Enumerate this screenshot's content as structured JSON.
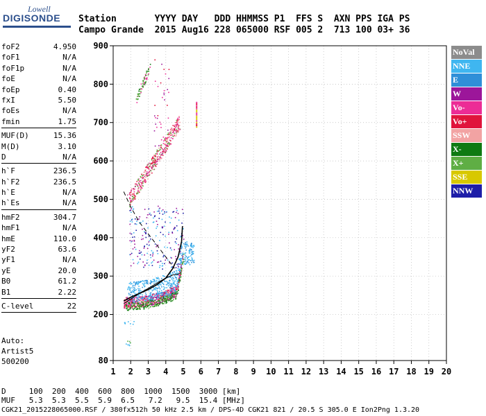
{
  "logo": {
    "top": "Lowell",
    "main": "DIGISONDE"
  },
  "header": {
    "line1": "Station       YYYY DAY   DDD HHMMSS P1  FFS S  AXN PPS IGA PS",
    "line2": "Campo Grande  2015 Aug16 228 065000 RSF 005 2  713 100 03+ 36"
  },
  "params": [
    {
      "k": "foF2",
      "v": "4.950"
    },
    {
      "k": "foF1",
      "v": "N/A"
    },
    {
      "k": "foF1p",
      "v": "N/A"
    },
    {
      "k": "foE",
      "v": "N/A"
    },
    {
      "k": "foEp",
      "v": "0.40"
    },
    {
      "k": "fxI",
      "v": "5.50"
    },
    {
      "k": "foEs",
      "v": "N/A"
    },
    {
      "k": "fmin",
      "v": "1.75"
    },
    {
      "sep": true
    },
    {
      "k": "MUF(D)",
      "v": "15.36"
    },
    {
      "k": "M(D)",
      "v": "3.10"
    },
    {
      "k": "D",
      "v": "N/A"
    },
    {
      "sep": true
    },
    {
      "k": "h`F",
      "v": "236.5"
    },
    {
      "k": "h`F2",
      "v": "236.5"
    },
    {
      "k": "h`E",
      "v": "N/A"
    },
    {
      "k": "h`Es",
      "v": "N/A"
    },
    {
      "sep": true
    },
    {
      "k": "hmF2",
      "v": "304.7"
    },
    {
      "k": "hmF1",
      "v": "N/A"
    },
    {
      "k": "hmE",
      "v": "110.0"
    },
    {
      "k": "yF2",
      "v": "63.6"
    },
    {
      "k": "yF1",
      "v": "N/A"
    },
    {
      "k": "yE",
      "v": "20.0"
    },
    {
      "k": "B0",
      "v": "61.2"
    },
    {
      "k": "B1",
      "v": "2.22"
    },
    {
      "sep": true
    },
    {
      "k": "C-level",
      "v": "22"
    },
    {
      "sep": true
    }
  ],
  "auto": {
    "line1": "Auto:",
    "line2": "Artist5",
    "line3": "500200"
  },
  "legend": [
    {
      "label": "NoVal",
      "color": "#8c8c8c"
    },
    {
      "label": "NNE",
      "color": "#3fb6f0"
    },
    {
      "label": "E",
      "color": "#2f8fd8"
    },
    {
      "label": "W",
      "color": "#9c169a"
    },
    {
      "label": "Vo-",
      "color": "#ec2c96"
    },
    {
      "label": "Vo+",
      "color": "#e0143c"
    },
    {
      "label": "SSW",
      "color": "#f2a3a3"
    },
    {
      "label": "X-",
      "color": "#0f7a12"
    },
    {
      "label": "X+",
      "color": "#5fae44"
    },
    {
      "label": "SSE",
      "color": "#d8c800"
    },
    {
      "label": "NNW",
      "color": "#1e1ea8"
    }
  ],
  "chart_data": {
    "type": "scatter",
    "xlabel": "",
    "ylabel": "",
    "xlim": [
      1,
      20
    ],
    "ylim": [
      80,
      900
    ],
    "xticks": [
      1,
      2,
      3,
      4,
      5,
      6,
      7,
      8,
      9,
      10,
      11,
      12,
      13,
      14,
      15,
      16,
      17,
      18,
      19,
      20
    ],
    "yticks": [
      80,
      200,
      300,
      400,
      500,
      600,
      700,
      800,
      900
    ],
    "o_trace": [
      [
        1.6,
        235
      ],
      [
        2.0,
        245
      ],
      [
        2.5,
        255
      ],
      [
        3.0,
        265
      ],
      [
        3.5,
        278
      ],
      [
        4.0,
        295
      ],
      [
        4.4,
        320
      ],
      [
        4.7,
        350
      ],
      [
        4.9,
        390
      ],
      [
        4.95,
        430
      ]
    ],
    "profile_solid": [
      [
        1.6,
        228
      ],
      [
        2.0,
        240
      ],
      [
        2.5,
        255
      ],
      [
        3.0,
        268
      ],
      [
        3.5,
        282
      ],
      [
        4.0,
        295
      ],
      [
        4.4,
        303
      ],
      [
        4.7,
        305
      ],
      [
        4.9,
        310
      ]
    ],
    "profile_dashed": [
      [
        1.6,
        520
      ],
      [
        2.0,
        480
      ],
      [
        2.5,
        440
      ],
      [
        3.0,
        410
      ],
      [
        3.5,
        380
      ],
      [
        4.0,
        350
      ],
      [
        4.5,
        320
      ]
    ],
    "multihop": [
      [
        1.8,
        510
      ],
      [
        2.5,
        545
      ],
      [
        3.2,
        580
      ],
      [
        3.8,
        620
      ],
      [
        4.3,
        660
      ],
      [
        4.7,
        700
      ]
    ],
    "threehop": [
      [
        2.3,
        760
      ],
      [
        2.6,
        790
      ],
      [
        2.9,
        830
      ]
    ]
  },
  "dmuf": {
    "line1": "D     100  200  400  600  800  1000  1500  3000 [km]",
    "line2": "MUF   5.3  5.3  5.5  5.9  6.5   7.2   9.5  15.4 [MHz]"
  },
  "footer": "CGK21_2015228065000.RSF / 380fx512h 50 kHz 2.5 km / DPS-4D CGK21 821 / 20.5 S 305.0 E Ion2Png 1.3.20"
}
